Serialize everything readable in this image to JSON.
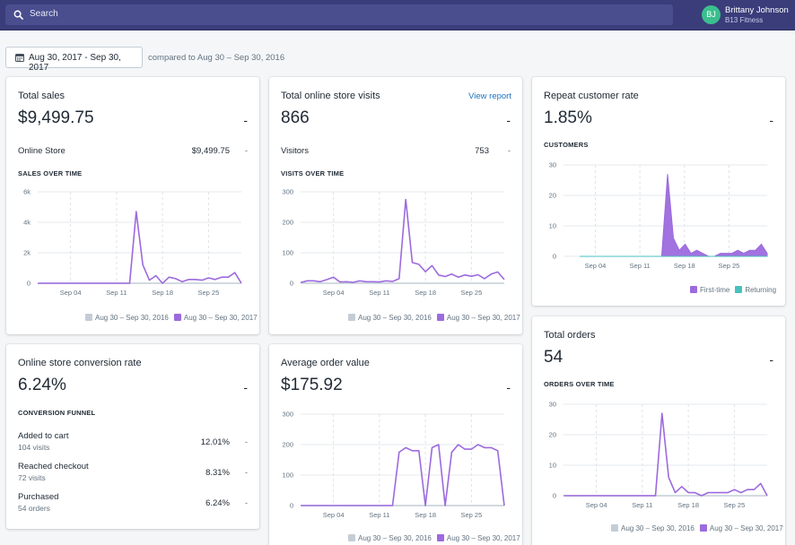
{
  "topbar": {
    "search_placeholder": "Search",
    "user_initials": "BJ",
    "user_name": "Brittany Johnson",
    "store_name": "B13 Fitness"
  },
  "date_range": {
    "label": "Aug 30, 2017 - Sep 30, 2017",
    "compared": "compared to Aug 30 – Sep 30, 2016"
  },
  "colors": {
    "current": "#9c6ade",
    "previous": "#c4cdd5",
    "returning": "#47c1bf",
    "topbar": "#3a3d7a"
  },
  "total_sales": {
    "title": "Total sales",
    "value": "$9,499.75",
    "dash": "-",
    "row": {
      "label": "Online Store",
      "value": "$9,499.75",
      "dash": "-"
    },
    "section": "SALES OVER TIME"
  },
  "visits": {
    "title": "Total online store visits",
    "link": "View report",
    "value": "866",
    "dash": "-",
    "row": {
      "label": "Visitors",
      "value": "753",
      "dash": "-"
    },
    "section": "VISITS OVER TIME"
  },
  "repeat": {
    "title": "Repeat customer rate",
    "value": "1.85%",
    "dash": "-",
    "section": "CUSTOMERS"
  },
  "conversion": {
    "title": "Online store conversion rate",
    "value": "6.24%",
    "dash": "-",
    "section": "CONVERSION FUNNEL",
    "steps": [
      {
        "label": "Added to cart",
        "sub": "104 visits",
        "value": "12.01%",
        "dash": "-"
      },
      {
        "label": "Reached checkout",
        "sub": "72 visits",
        "value": "8.31%",
        "dash": "-"
      },
      {
        "label": "Purchased",
        "sub": "54 orders",
        "value": "6.24%",
        "dash": "-"
      }
    ]
  },
  "aov": {
    "title": "Average order value",
    "value": "$175.92",
    "dash": "-"
  },
  "orders": {
    "title": "Total orders",
    "value": "54",
    "dash": "-",
    "section": "ORDERS OVER TIME"
  },
  "legends": {
    "prev": "Aug 30 – Sep 30, 2016",
    "curr": "Aug 30 – Sep 30, 2017",
    "first_time": "First-time",
    "returning": "Returning"
  },
  "chart_data": [
    {
      "id": "sales",
      "type": "line",
      "title": "SALES OVER TIME",
      "x_ticks": [
        "Sep 04",
        "Sep 11",
        "Sep 18",
        "Sep 25"
      ],
      "y_ticks": [
        "0",
        "2k",
        "4k",
        "6k"
      ],
      "ylim": [
        0,
        6000
      ],
      "series": [
        {
          "name": "Aug 30 – Sep 30, 2017",
          "values": [
            0,
            0,
            0,
            0,
            0,
            0,
            0,
            0,
            0,
            0,
            0,
            0,
            0,
            0,
            0,
            4700,
            1200,
            200,
            500,
            0,
            400,
            300,
            100,
            250,
            250,
            200,
            350,
            250,
            400,
            400,
            700,
            0
          ]
        }
      ]
    },
    {
      "id": "visits",
      "type": "line",
      "title": "VISITS OVER TIME",
      "x_ticks": [
        "Sep 04",
        "Sep 11",
        "Sep 18",
        "Sep 25"
      ],
      "y_ticks": [
        "0",
        "100",
        "200",
        "300"
      ],
      "ylim": [
        0,
        300
      ],
      "series": [
        {
          "name": "Aug 30 – Sep 30, 2017",
          "values": [
            2,
            8,
            8,
            5,
            12,
            20,
            4,
            5,
            3,
            8,
            5,
            5,
            4,
            8,
            6,
            15,
            275,
            68,
            62,
            38,
            58,
            27,
            22,
            30,
            20,
            27,
            23,
            28,
            15,
            30,
            37,
            12
          ]
        }
      ]
    },
    {
      "id": "customers",
      "type": "area",
      "title": "CUSTOMERS",
      "x_ticks": [
        "Sep 04",
        "Sep 11",
        "Sep 18",
        "Sep 25"
      ],
      "y_ticks": [
        "0",
        "10",
        "20",
        "30"
      ],
      "ylim": [
        0,
        30
      ],
      "series": [
        {
          "name": "First-time",
          "values": [
            0,
            0,
            0,
            0,
            0,
            0,
            0,
            0,
            0,
            0,
            0,
            0,
            0,
            0,
            0,
            27,
            6,
            2,
            4,
            1,
            2,
            1,
            0,
            0,
            1,
            1,
            1,
            2,
            1,
            2,
            2,
            4,
            1
          ]
        },
        {
          "name": "Returning",
          "values": [
            0,
            0,
            0,
            0,
            0,
            0,
            0,
            0,
            0,
            0,
            0,
            0,
            0,
            0,
            0,
            0,
            0,
            0,
            0,
            0,
            0,
            0,
            0,
            0,
            0,
            0,
            0,
            0,
            0,
            0,
            0,
            0,
            0
          ]
        }
      ]
    },
    {
      "id": "aov",
      "type": "line",
      "title": "Average order value",
      "x_ticks": [
        "Sep 04",
        "Sep 11",
        "Sep 18",
        "Sep 25"
      ],
      "y_ticks": [
        "0",
        "100",
        "200",
        "300"
      ],
      "ylim": [
        0,
        300
      ],
      "series": [
        {
          "name": "Aug 30 – Sep 30, 2017",
          "values": [
            0,
            0,
            0,
            0,
            0,
            0,
            0,
            0,
            0,
            0,
            0,
            0,
            0,
            0,
            0,
            175,
            190,
            180,
            180,
            0,
            190,
            200,
            0,
            175,
            200,
            185,
            185,
            200,
            190,
            190,
            180,
            0
          ]
        }
      ]
    },
    {
      "id": "orders",
      "type": "line",
      "title": "ORDERS OVER TIME",
      "x_ticks": [
        "Sep 04",
        "Sep 11",
        "Sep 18",
        "Sep 25"
      ],
      "y_ticks": [
        "0",
        "10",
        "20",
        "30"
      ],
      "ylim": [
        0,
        30
      ],
      "series": [
        {
          "name": "Aug 30 – Sep 30, 2017",
          "values": [
            0,
            0,
            0,
            0,
            0,
            0,
            0,
            0,
            0,
            0,
            0,
            0,
            0,
            0,
            0,
            27,
            6,
            1,
            3,
            1,
            1,
            0,
            1,
            1,
            1,
            1,
            2,
            1,
            2,
            2,
            4,
            0
          ]
        }
      ]
    }
  ]
}
